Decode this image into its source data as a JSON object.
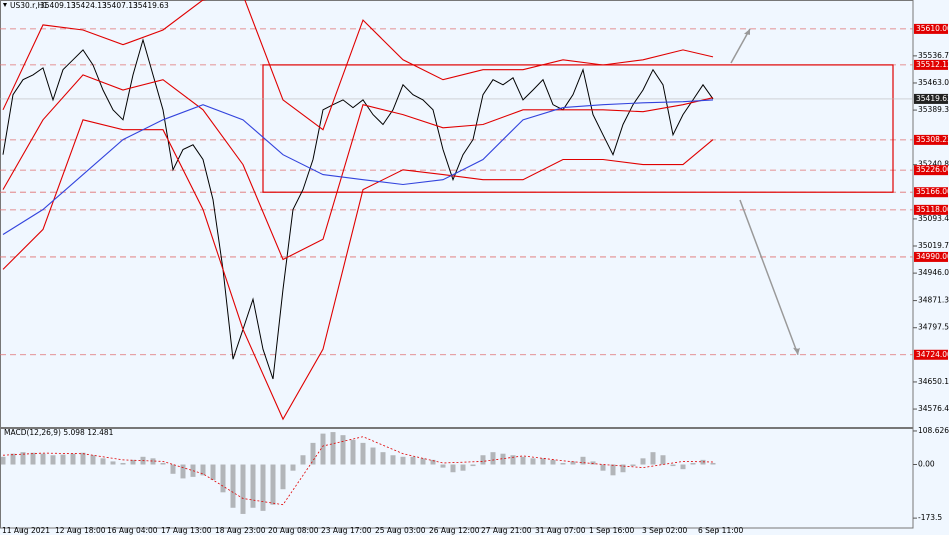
{
  "chart_data": [
    {
      "type": "line",
      "title": "US30.r,H1",
      "header_values": [
        35409.13,
        35424.13,
        35407.13,
        35419.63
      ],
      "xlim": [
        -0.3,
        91
      ],
      "xticks": [
        {
          "value": 1.9,
          "label": "11 Aug 2021"
        },
        {
          "value": 7.2,
          "label": "12 Aug 18:00"
        },
        {
          "value": 12.4,
          "label": "16 Aug 04:00"
        },
        {
          "value": 17.8,
          "label": "17 Aug 13:00"
        },
        {
          "value": 23.2,
          "label": "18 Aug 23:00"
        },
        {
          "value": 28.5,
          "label": "20 Aug 08:00"
        },
        {
          "value": 33.8,
          "label": "23 Aug 17:00"
        },
        {
          "value": 39.2,
          "label": "25 Aug 03:00"
        },
        {
          "value": 44.6,
          "label": "26 Aug 12:00"
        },
        {
          "value": 49.8,
          "label": "27 Aug 21:00"
        },
        {
          "value": 55.2,
          "label": "31 Aug 07:00"
        },
        {
          "value": 60.6,
          "label": "1 Sep 16:00"
        },
        {
          "value": 65.9,
          "label": "3 Sep 02:00"
        },
        {
          "value": 71.5,
          "label": "6 Sep 11:00"
        }
      ],
      "ylim": [
        34527.6,
        35688.6
      ],
      "yticks": [
        {
          "value": 35536.7,
          "label": "35536.70"
        },
        {
          "value": 35463,
          "label": "35463.00"
        },
        {
          "value": 35389.3,
          "label": "35389.30"
        },
        {
          "value": 35240.8,
          "label": "35240.80"
        },
        35093.4,
        35019.7,
        {
          "value": 34946,
          "label": "34946.00"
        },
        34871.3,
        34797.5,
        34650.1,
        34576.4
      ],
      "levels": [
        {
          "value": 35610,
          "label": "35610.00"
        },
        {
          "value": 35512.12,
          "label": "35512.12"
        },
        {
          "value": 35308.23,
          "label": "35308.23"
        },
        {
          "value": 35226,
          "label": "35226.00"
        },
        {
          "value": 35166,
          "label": "35166.00"
        },
        {
          "value": 35118,
          "label": "35118.00"
        },
        {
          "value": 34990,
          "label": "34990.00"
        },
        {
          "value": 34724,
          "label": "34724.00"
        }
      ],
      "last_price": 35419.63,
      "series": [
        {
          "color": "#000000",
          "values": [
            35268,
            35431,
            35472,
            35485,
            35504,
            35417,
            35499,
            35526,
            35553,
            35512,
            35444,
            35390,
            35363,
            35485,
            35580,
            35485,
            35390,
            35227,
            35282,
            35295,
            35255,
            35146,
            34956,
            34712,
            34793,
            34875,
            34739,
            34658,
            34902,
            35119,
            35173,
            35255,
            35390,
            35404,
            35417,
            35396,
            35417,
            35377,
            35350,
            35390,
            35458,
            35431,
            35417,
            35390,
            35282,
            35200,
            35268,
            35309,
            35431,
            35472,
            35458,
            35477,
            35417,
            35444,
            35472,
            35404,
            35390,
            35431,
            35499,
            35377,
            35322,
            35268,
            35350,
            35404,
            35444,
            35499,
            35458,
            35322,
            35377,
            35417,
            35458,
            35419.63
          ]
        },
        {
          "color": "#e00000",
          "x": [
            0,
            4,
            8,
            12,
            16,
            20,
            24,
            28,
            32,
            36,
            40,
            44,
            48,
            52,
            56,
            60,
            64,
            68,
            71
          ],
          "values": [
            35390,
            35621,
            35607,
            35567,
            35607,
            35689,
            35702,
            35417,
            35336,
            35634,
            35526,
            35472,
            35499,
            35499,
            35526,
            35512,
            35526,
            35553,
            35534
          ]
        },
        {
          "color": "#e00000",
          "x": [
            0,
            4,
            8,
            12,
            16,
            20,
            24,
            28,
            32,
            36,
            40,
            44,
            48,
            52,
            56,
            60,
            64,
            68,
            71
          ],
          "values": [
            35173,
            35363,
            35485,
            35444,
            35472,
            35390,
            35241,
            34983,
            35038,
            35404,
            35377,
            35341,
            35350,
            35390,
            35390,
            35390,
            35385,
            35404,
            35423
          ]
        },
        {
          "color": "#e00000",
          "x": [
            0,
            4,
            8,
            12,
            16,
            20,
            24,
            28,
            32,
            36,
            40,
            44,
            48,
            52,
            56,
            60,
            64,
            68,
            71
          ],
          "values": [
            34956,
            35065,
            35363,
            35336,
            35336,
            35119,
            34793,
            34549,
            34739,
            35173,
            35227,
            35214,
            35200,
            35200,
            35255,
            35255,
            35241,
            35241,
            35309
          ]
        },
        {
          "color": "#3344dd",
          "x": [
            0,
            4,
            8,
            12,
            16,
            20,
            24,
            28,
            32,
            36,
            40,
            44,
            48,
            52,
            56,
            60,
            64,
            68,
            71
          ],
          "values": [
            35051,
            35119,
            35214,
            35309,
            35363,
            35404,
            35363,
            35268,
            35214,
            35200,
            35187,
            35200,
            35255,
            35363,
            35396,
            35404,
            35409,
            35412,
            35417
          ]
        }
      ]
    },
    {
      "type": "bar",
      "title": "MACD(12,26,9) 5.098 12.481",
      "ylim": [
        -205.5,
        118.2
      ],
      "yticks": [
        108.626,
        {
          "value": 0,
          "label": "0.00"
        },
        -173.5
      ],
      "color": "#808080",
      "values": [
        25,
        35,
        40,
        38,
        35,
        30,
        32,
        35,
        38,
        30,
        20,
        10,
        5,
        15,
        25,
        20,
        5,
        -30,
        -45,
        -40,
        -35,
        -50,
        -90,
        -140,
        -160,
        -140,
        -150,
        -130,
        -80,
        -20,
        30,
        70,
        100,
        105,
        95,
        80,
        70,
        55,
        40,
        30,
        25,
        25,
        20,
        15,
        -10,
        -25,
        -20,
        -5,
        30,
        40,
        35,
        30,
        25,
        20,
        20,
        15,
        5,
        10,
        25,
        10,
        -20,
        -35,
        -25,
        -5,
        20,
        40,
        30,
        -5,
        -15,
        5,
        15,
        5
      ],
      "series": [
        {
          "color": "#e00000",
          "x": [
            0,
            4,
            8,
            12,
            16,
            20,
            24,
            28,
            32,
            36,
            40,
            44,
            48,
            52,
            56,
            60,
            64,
            68,
            71
          ],
          "values": [
            30,
            37,
            35,
            15,
            10,
            -30,
            -110,
            -130,
            60,
            90,
            35,
            5,
            10,
            28,
            12,
            0,
            -10,
            10,
            8
          ]
        }
      ]
    }
  ]
}
